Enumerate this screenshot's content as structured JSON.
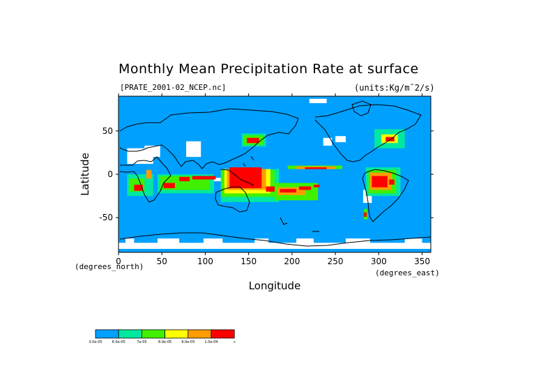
{
  "chart_data": {
    "type": "heatmap",
    "title": "Monthly Mean Precipitation Rate at surface",
    "subtitle_left": "[PRATE_2001-02_NCEP.nc]",
    "subtitle_right": "(units:Kg/m¯2/s)",
    "xlabel": "Longitude",
    "ylabel": "Latitude",
    "x_unit_label": "(degrees_east)",
    "y_unit_label": "(degrees_north)",
    "xlim": [
      0,
      360
    ],
    "ylim": [
      -90,
      90
    ],
    "x_ticks": [
      0,
      50,
      100,
      150,
      200,
      250,
      300,
      350
    ],
    "y_ticks": [
      50,
      0,
      -50
    ],
    "colorbar": {
      "colors": [
        "#00a0ff",
        "#00e8a0",
        "#40f000",
        "#ffff00",
        "#ff9c00",
        "#ff0000"
      ],
      "labels": [
        "3.0e-05",
        "6.0e-05",
        "7e-05",
        "8.0e-05",
        "9.0e-05",
        "1.0e-04",
        "∞"
      ]
    },
    "background_color": "#00a0ff",
    "missing_color": "#ffffff",
    "regions": [
      {
        "level": 0,
        "lon": [
          0,
          360
        ],
        "lat": [
          -90,
          90
        ]
      },
      {
        "level": -1,
        "lon": [
          10,
          40
        ],
        "lat": [
          12,
          30
        ]
      },
      {
        "level": -1,
        "lon": [
          30,
          48
        ],
        "lat": [
          20,
          33
        ]
      },
      {
        "level": -1,
        "lon": [
          78,
          95
        ],
        "lat": [
          20,
          38
        ]
      },
      {
        "level": -1,
        "lon": [
          236,
          246
        ],
        "lat": [
          33,
          42
        ]
      },
      {
        "level": -1,
        "lon": [
          250,
          262
        ],
        "lat": [
          37,
          44
        ]
      },
      {
        "level": -1,
        "lon": [
          282,
          292
        ],
        "lat": [
          -33,
          -18
        ]
      },
      {
        "level": -1,
        "lon": [
          0,
          360
        ],
        "lat": [
          -86,
          -79
        ]
      },
      {
        "level": -1,
        "lon": [
          8,
          18
        ],
        "lat": [
          -80,
          -74
        ]
      },
      {
        "level": -1,
        "lon": [
          45,
          70
        ],
        "lat": [
          -80,
          -74
        ]
      },
      {
        "level": -1,
        "lon": [
          98,
          120
        ],
        "lat": [
          -80,
          -74
        ]
      },
      {
        "level": -1,
        "lon": [
          157,
          173
        ],
        "lat": [
          -80,
          -74
        ]
      },
      {
        "level": -1,
        "lon": [
          205,
          225
        ],
        "lat": [
          -80,
          -74
        ]
      },
      {
        "level": -1,
        "lon": [
          262,
          290
        ],
        "lat": [
          -80,
          -74
        ]
      },
      {
        "level": -1,
        "lon": [
          330,
          350
        ],
        "lat": [
          -80,
          -74
        ]
      },
      {
        "level": -1,
        "lon": [
          220,
          240
        ],
        "lat": [
          82,
          87
        ]
      },
      {
        "level": -1,
        "lon": [
          100,
          118
        ],
        "lat": [
          -8,
          -4
        ]
      },
      {
        "level": -1,
        "lon": [
          172,
          180
        ],
        "lat": [
          -8,
          -6
        ]
      },
      {
        "level": 1,
        "lon": [
          142,
          170
        ],
        "lat": [
          32,
          47
        ]
      },
      {
        "level": 2,
        "lon": [
          144,
          167
        ],
        "lat": [
          34,
          45
        ]
      },
      {
        "level": 5,
        "lon": [
          148,
          162
        ],
        "lat": [
          36,
          42
        ]
      },
      {
        "level": 1,
        "lon": [
          295,
          330
        ],
        "lat": [
          30,
          52
        ]
      },
      {
        "level": 3,
        "lon": [
          303,
          322
        ],
        "lat": [
          36,
          46
        ]
      },
      {
        "level": 5,
        "lon": [
          308,
          318
        ],
        "lat": [
          38,
          43
        ]
      },
      {
        "level": 2,
        "lon": [
          195,
          258
        ],
        "lat": [
          6,
          10
        ]
      },
      {
        "level": 4,
        "lon": [
          205,
          250
        ],
        "lat": [
          6,
          9
        ]
      },
      {
        "level": 5,
        "lon": [
          215,
          240
        ],
        "lat": [
          6,
          8
        ]
      },
      {
        "level": 1,
        "lon": [
          118,
          185
        ],
        "lat": [
          -32,
          6
        ]
      },
      {
        "level": 2,
        "lon": [
          118,
          180
        ],
        "lat": [
          -26,
          5
        ]
      },
      {
        "level": 3,
        "lon": [
          122,
          175
        ],
        "lat": [
          -22,
          6
        ]
      },
      {
        "level": 4,
        "lon": [
          125,
          170
        ],
        "lat": [
          -18,
          6
        ]
      },
      {
        "level": 5,
        "lon": [
          128,
          165
        ],
        "lat": [
          -16,
          8
        ]
      },
      {
        "level": 5,
        "lon": [
          170,
          188
        ],
        "lat": [
          -20,
          -14
        ]
      },
      {
        "level": 2,
        "lon": [
          180,
          230
        ],
        "lat": [
          -30,
          -10
        ]
      },
      {
        "level": 4,
        "lon": [
          183,
          215
        ],
        "lat": [
          -24,
          -15
        ]
      },
      {
        "level": 5,
        "lon": [
          186,
          205
        ],
        "lat": [
          -21,
          -17
        ]
      },
      {
        "level": 5,
        "lon": [
          208,
          222
        ],
        "lat": [
          -18,
          -14
        ]
      },
      {
        "level": 5,
        "lon": [
          225,
          232
        ],
        "lat": [
          -15,
          -12
        ]
      },
      {
        "level": 1,
        "lon": [
          45,
          110
        ],
        "lat": [
          -22,
          0
        ]
      },
      {
        "level": 2,
        "lon": [
          48,
          105
        ],
        "lat": [
          -18,
          -2
        ]
      },
      {
        "level": 5,
        "lon": [
          52,
          65
        ],
        "lat": [
          -16,
          -10
        ]
      },
      {
        "level": 5,
        "lon": [
          70,
          82
        ],
        "lat": [
          -8,
          -3
        ]
      },
      {
        "level": 5,
        "lon": [
          85,
          112
        ],
        "lat": [
          -6,
          -2
        ]
      },
      {
        "level": 1,
        "lon": [
          10,
          40
        ],
        "lat": [
          -25,
          0
        ]
      },
      {
        "level": 2,
        "lon": [
          12,
          30
        ],
        "lat": [
          -20,
          -5
        ]
      },
      {
        "level": 5,
        "lon": [
          18,
          28
        ],
        "lat": [
          -19,
          -12
        ]
      },
      {
        "level": 4,
        "lon": [
          32,
          38
        ],
        "lat": [
          -5,
          5
        ]
      },
      {
        "level": 1,
        "lon": [
          285,
          325
        ],
        "lat": [
          -25,
          8
        ]
      },
      {
        "level": 2,
        "lon": [
          288,
          320
        ],
        "lat": [
          -22,
          5
        ]
      },
      {
        "level": 4,
        "lon": [
          290,
          315
        ],
        "lat": [
          -18,
          2
        ]
      },
      {
        "level": 5,
        "lon": [
          292,
          310
        ],
        "lat": [
          -15,
          -2
        ]
      },
      {
        "level": 5,
        "lon": [
          312,
          318
        ],
        "lat": [
          -12,
          -6
        ]
      },
      {
        "level": 2,
        "lon": [
          283,
          287
        ],
        "lat": [
          -52,
          -40
        ]
      },
      {
        "level": 5,
        "lon": [
          283,
          286
        ],
        "lat": [
          -49,
          -44
        ]
      }
    ]
  }
}
